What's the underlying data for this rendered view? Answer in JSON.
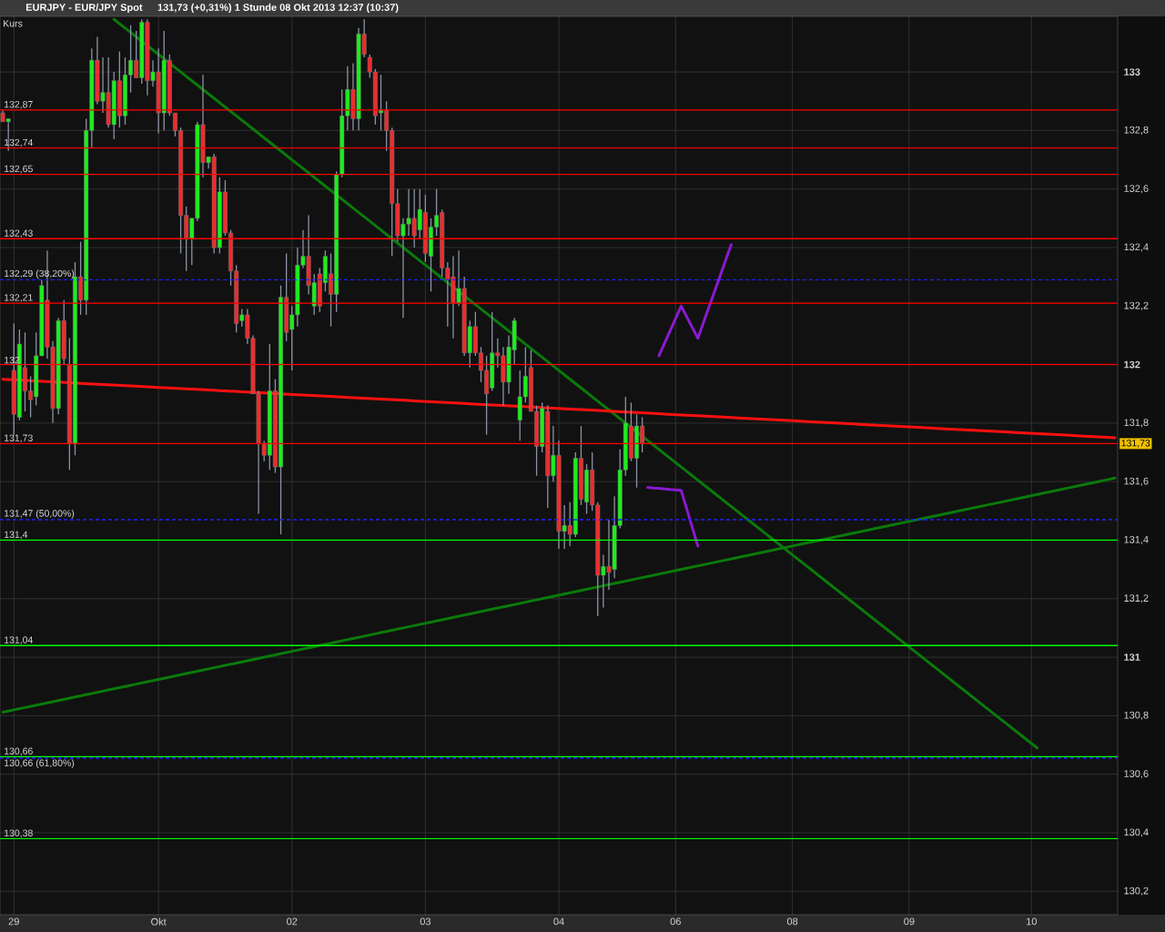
{
  "chart_data": {
    "type": "candlestick",
    "title": "EURJPY - EUR/JPY Spot",
    "subtitle": "131,73 (+0,31%)   1 Stunde  08 Okt 2013 12:37 (10:37)",
    "categories": [
      null,
      null,
      "29",
      null,
      null,
      null,
      null,
      null,
      null,
      null,
      null,
      null,
      null,
      null,
      null,
      null,
      null,
      null,
      null,
      null,
      null,
      null,
      null,
      null,
      null,
      null,
      null,
      null,
      "Okt",
      null,
      null,
      null,
      null,
      null,
      null,
      null,
      null,
      null,
      null,
      null,
      null,
      null,
      null,
      null,
      null,
      null,
      null,
      null,
      null,
      null,
      null,
      null,
      "02",
      null,
      null,
      null,
      null,
      null,
      null,
      null,
      null,
      null,
      null,
      null,
      null,
      null,
      null,
      null,
      null,
      null,
      null,
      null,
      null,
      null,
      null,
      null,
      "03",
      null,
      null,
      null,
      null,
      null,
      null,
      null,
      null,
      null,
      null,
      null,
      null,
      null,
      null,
      null,
      null,
      null,
      null,
      null,
      null,
      null,
      null,
      null,
      "04",
      null,
      null,
      null,
      null,
      null,
      null,
      null,
      null,
      null,
      null,
      null,
      null,
      null,
      null,
      null,
      null,
      null,
      null,
      null,
      null,
      "06",
      null,
      null,
      null,
      null,
      null,
      null,
      null,
      null,
      null,
      null,
      null,
      null,
      null,
      null,
      null,
      null,
      null,
      null,
      null,
      null,
      "08",
      null,
      null,
      null,
      null,
      null,
      null,
      null,
      null,
      null,
      null,
      null,
      null,
      null,
      null,
      null,
      null,
      null,
      null,
      null,
      null,
      "09",
      null,
      null,
      null,
      null,
      null,
      null,
      null,
      null,
      null,
      null,
      null,
      null,
      null,
      null,
      null,
      null,
      null,
      null,
      null,
      null,
      null,
      "10",
      null,
      null,
      null,
      null,
      null,
      null,
      null,
      null,
      null,
      null,
      null,
      null,
      null,
      null,
      null
    ],
    "ohlc": [
      [
        132.86,
        132.87,
        132.83,
        132.83
      ],
      [
        132.83,
        132.84,
        132.73,
        132.84
      ],
      [
        131.98,
        132.14,
        131.76,
        131.83
      ],
      [
        131.82,
        132.12,
        131.81,
        132.07
      ],
      [
        131.99,
        132.11,
        131.84,
        131.91
      ],
      [
        131.91,
        131.96,
        131.82,
        131.88
      ],
      [
        131.89,
        132.11,
        131.86,
        132.03
      ],
      [
        132.03,
        132.29,
        132.03,
        132.27
      ],
      [
        132.22,
        132.39,
        132.02,
        132.06
      ],
      [
        132.06,
        132.08,
        131.8,
        131.85
      ],
      [
        131.85,
        132.16,
        131.83,
        132.15
      ],
      [
        132.15,
        132.22,
        132.0,
        132.02
      ],
      [
        132.0,
        132.09,
        131.64,
        131.73
      ],
      [
        131.73,
        132.35,
        131.69,
        132.3
      ],
      [
        132.3,
        132.42,
        132.17,
        132.22
      ],
      [
        132.22,
        132.84,
        132.17,
        132.8
      ],
      [
        132.8,
        133.08,
        132.74,
        133.04
      ],
      [
        133.04,
        133.12,
        132.89,
        132.9
      ],
      [
        132.9,
        133.05,
        132.86,
        132.93
      ],
      [
        132.93,
        133.05,
        132.81,
        132.82
      ],
      [
        132.82,
        133.0,
        132.77,
        132.97
      ],
      [
        132.97,
        133.07,
        132.81,
        132.85
      ],
      [
        132.85,
        133.05,
        132.82,
        132.99
      ],
      [
        132.99,
        133.16,
        132.93,
        133.04
      ],
      [
        133.04,
        133.14,
        132.98,
        132.98
      ],
      [
        132.98,
        133.18,
        132.96,
        133.17
      ],
      [
        133.17,
        133.18,
        132.92,
        132.97
      ],
      [
        132.97,
        133.04,
        132.95,
        133.0
      ],
      [
        133.0,
        133.08,
        132.79,
        132.86
      ],
      [
        132.86,
        133.14,
        132.8,
        133.04
      ],
      [
        133.04,
        133.06,
        132.85,
        132.86
      ],
      [
        132.86,
        132.86,
        132.78,
        132.8
      ],
      [
        132.8,
        132.81,
        132.38,
        132.51
      ],
      [
        132.51,
        132.54,
        132.32,
        132.43
      ],
      [
        132.43,
        132.5,
        132.34,
        132.5
      ],
      [
        132.5,
        132.83,
        132.49,
        132.82
      ],
      [
        132.82,
        132.99,
        132.64,
        132.69
      ],
      [
        132.69,
        132.71,
        132.67,
        132.71
      ],
      [
        132.71,
        132.72,
        132.38,
        132.4
      ],
      [
        132.4,
        132.64,
        132.38,
        132.59
      ],
      [
        132.59,
        132.63,
        132.44,
        132.45
      ],
      [
        132.45,
        132.46,
        132.27,
        132.32
      ],
      [
        132.32,
        132.34,
        132.11,
        132.14
      ],
      [
        132.15,
        132.19,
        132.13,
        132.17
      ],
      [
        132.17,
        132.19,
        132.07,
        132.09
      ],
      [
        132.09,
        132.1,
        131.9,
        131.9
      ],
      [
        131.9,
        131.91,
        131.49,
        131.73
      ],
      [
        131.73,
        131.74,
        131.67,
        131.69
      ],
      [
        131.69,
        132.07,
        131.64,
        131.91
      ],
      [
        131.91,
        131.95,
        131.63,
        131.65
      ],
      [
        131.65,
        132.27,
        131.42,
        132.23
      ],
      [
        132.23,
        132.38,
        132.08,
        132.11
      ],
      [
        132.12,
        132.2,
        131.98,
        132.17
      ],
      [
        132.17,
        132.4,
        132.13,
        132.34
      ],
      [
        132.34,
        132.46,
        132.33,
        132.37
      ],
      [
        132.37,
        132.51,
        132.24,
        132.27
      ],
      [
        132.2,
        132.31,
        132.17,
        132.28
      ],
      [
        132.31,
        132.33,
        132.18,
        132.2
      ],
      [
        132.28,
        132.39,
        132.25,
        132.37
      ],
      [
        132.31,
        132.38,
        132.13,
        132.24
      ],
      [
        132.24,
        132.66,
        132.18,
        132.65
      ],
      [
        132.65,
        132.94,
        132.64,
        132.85
      ],
      [
        132.85,
        133.02,
        132.8,
        132.94
      ],
      [
        132.94,
        133.03,
        132.8,
        132.84
      ],
      [
        132.84,
        133.15,
        132.8,
        133.13
      ],
      [
        133.13,
        133.18,
        133.05,
        133.06
      ],
      [
        133.05,
        133.06,
        132.98,
        133.0
      ],
      [
        133.0,
        133.01,
        132.82,
        132.85
      ],
      [
        132.86,
        132.99,
        132.8,
        132.87
      ],
      [
        132.87,
        132.9,
        132.73,
        132.8
      ],
      [
        132.8,
        132.81,
        132.37,
        132.55
      ],
      [
        132.55,
        132.6,
        132.42,
        132.44
      ],
      [
        132.44,
        132.5,
        132.16,
        132.48
      ],
      [
        132.48,
        132.6,
        132.44,
        132.5
      ],
      [
        132.5,
        132.6,
        132.4,
        132.44
      ],
      [
        132.46,
        132.6,
        132.43,
        132.53
      ],
      [
        132.52,
        132.58,
        132.35,
        132.38
      ],
      [
        132.37,
        132.5,
        132.25,
        132.47
      ],
      [
        132.47,
        132.6,
        132.44,
        132.51
      ],
      [
        132.52,
        132.53,
        132.3,
        132.33
      ],
      [
        132.33,
        132.35,
        132.13,
        132.29
      ],
      [
        132.3,
        132.37,
        132.09,
        132.21
      ],
      [
        132.21,
        132.39,
        132.2,
        132.26
      ],
      [
        132.26,
        132.3,
        132.03,
        132.04
      ],
      [
        132.04,
        132.15,
        131.99,
        132.13
      ],
      [
        132.13,
        132.18,
        132.03,
        132.04
      ],
      [
        132.04,
        132.06,
        131.94,
        131.98
      ],
      [
        131.98,
        132.03,
        131.76,
        131.9
      ],
      [
        131.92,
        132.18,
        131.91,
        132.04
      ],
      [
        132.04,
        132.09,
        131.99,
        132.03
      ],
      [
        132.03,
        132.06,
        131.86,
        131.94
      ],
      [
        131.94,
        132.1,
        131.9,
        132.06
      ],
      [
        132.05,
        132.16,
        132.0,
        132.15
      ],
      [
        131.81,
        131.98,
        131.74,
        131.89
      ],
      [
        131.89,
        132.06,
        131.87,
        131.96
      ],
      [
        131.99,
        132.05,
        131.84,
        131.84
      ],
      [
        131.84,
        131.86,
        131.62,
        131.72
      ],
      [
        131.72,
        131.87,
        131.7,
        131.85
      ],
      [
        131.84,
        131.86,
        131.51,
        131.62
      ],
      [
        131.62,
        131.79,
        131.6,
        131.69
      ],
      [
        131.69,
        131.74,
        131.37,
        131.43
      ],
      [
        131.43,
        131.52,
        131.37,
        131.45
      ],
      [
        131.45,
        131.53,
        131.38,
        131.42
      ],
      [
        131.42,
        131.7,
        131.41,
        131.68
      ],
      [
        131.68,
        131.79,
        131.52,
        131.54
      ],
      [
        131.53,
        131.66,
        131.49,
        131.64
      ],
      [
        131.64,
        131.7,
        131.5,
        131.52
      ],
      [
        131.52,
        131.53,
        131.14,
        131.28
      ],
      [
        131.28,
        131.35,
        131.17,
        131.31
      ],
      [
        131.31,
        131.47,
        131.23,
        131.29
      ],
      [
        131.3,
        131.55,
        131.27,
        131.45
      ],
      [
        131.45,
        131.71,
        131.44,
        131.64
      ],
      [
        131.64,
        131.89,
        131.62,
        131.8
      ],
      [
        131.79,
        131.87,
        131.67,
        131.68
      ],
      [
        131.68,
        131.83,
        131.58,
        131.79
      ],
      [
        131.79,
        131.82,
        131.7,
        131.73
      ],
      null,
      null,
      null,
      null,
      null,
      null,
      null,
      null,
      null,
      null,
      null,
      null,
      null,
      null,
      null,
      null,
      null,
      null,
      null,
      null,
      null,
      null,
      null,
      null,
      null,
      null,
      null,
      null,
      null,
      null,
      null,
      null,
      null,
      null,
      null,
      null,
      null,
      null,
      null,
      null,
      null,
      null,
      null,
      null,
      null,
      null,
      null,
      null,
      null,
      null,
      null,
      null,
      null,
      null,
      null,
      null,
      null,
      null,
      null,
      null,
      null,
      null,
      null,
      null,
      null,
      null,
      null,
      null,
      null,
      null,
      null,
      null,
      null,
      null,
      null,
      null,
      null,
      null,
      null,
      null,
      null,
      null,
      null,
      null,
      null
    ],
    "colors": [
      "#ef2b2b",
      "#1aef1a",
      "#ef2b2b",
      "#1aef1a",
      "#ef2b2b",
      "#ef2b2b",
      "#1aef1a",
      "#1aef1a",
      "#ef2b2b",
      "#ef2b2b",
      "#1aef1a",
      "#ef2b2b",
      "#ef2b2b",
      "#1aef1a",
      "#ef2b2b",
      "#1aef1a",
      "#1aef1a",
      "#ef2b2b",
      "#1aef1a",
      "#ef2b2b",
      "#1aef1a",
      "#ef2b2b",
      "#1aef1a",
      "#1aef1a",
      "#ef2b2b",
      "#1aef1a",
      "#ef2b2b",
      "#1aef1a",
      "#ef2b2b",
      "#1aef1a",
      "#ef2b2b",
      "#ef2b2b",
      "#ef2b2b",
      "#ef2b2b",
      "#1aef1a",
      "#1aef1a",
      "#ef2b2b",
      "#1aef1a",
      "#ef2b2b",
      "#1aef1a",
      "#ef2b2b",
      "#ef2b2b",
      "#ef2b2b",
      "#1aef1a",
      "#ef2b2b",
      "#ef2b2b",
      "#ef2b2b",
      "#ef2b2b",
      "#1aef1a",
      "#ef2b2b",
      "#1aef1a",
      "#ef2b2b",
      "#1aef1a",
      "#1aef1a",
      "#1aef1a",
      "#ef2b2b",
      "#1aef1a",
      "#ef2b2b",
      "#1aef1a",
      "#ef2b2b",
      "#1aef1a",
      "#1aef1a",
      "#1aef1a",
      "#ef2b2b",
      "#1aef1a",
      "#ef2b2b",
      "#ef2b2b",
      "#ef2b2b",
      "#1aef1a",
      "#ef2b2b",
      "#ef2b2b",
      "#ef2b2b",
      "#1aef1a",
      "#1aef1a",
      "#ef2b2b",
      "#1aef1a",
      "#ef2b2b",
      "#1aef1a",
      "#1aef1a",
      "#ef2b2b",
      "#ef2b2b",
      "#ef2b2b",
      "#1aef1a",
      "#ef2b2b",
      "#1aef1a",
      "#ef2b2b",
      "#ef2b2b",
      "#ef2b2b",
      "#1aef1a",
      "#ef2b2b",
      "#ef2b2b",
      "#1aef1a",
      "#1aef1a",
      "#1aef1a",
      "#1aef1a",
      "#ef2b2b",
      "#ef2b2b",
      "#1aef1a",
      "#ef2b2b",
      "#1aef1a",
      "#ef2b2b",
      "#1aef1a",
      "#ef2b2b",
      "#1aef1a",
      "#ef2b2b",
      "#1aef1a",
      "#ef2b2b",
      "#ef2b2b",
      "#1aef1a",
      "#ef2b2b",
      "#1aef1a",
      "#1aef1a",
      "#1aef1a",
      "#ef2b2b",
      "#1aef1a",
      "#ef2b2b",
      null,
      null,
      null,
      null,
      null,
      null,
      null,
      null,
      null,
      null,
      null,
      null,
      null,
      null,
      null,
      null,
      null,
      null,
      null,
      null,
      null,
      null,
      null,
      null,
      null,
      null,
      null,
      null,
      null,
      null,
      null,
      null,
      null,
      null,
      null,
      null,
      null,
      null,
      null,
      null,
      null,
      null,
      null,
      null,
      null,
      null,
      null,
      null,
      null,
      null,
      null,
      null,
      null,
      null,
      null,
      null,
      null,
      null,
      null,
      null,
      null,
      null,
      null,
      null,
      null,
      null,
      null,
      null,
      null,
      null,
      null,
      null,
      null,
      null,
      null,
      null,
      null,
      null,
      null,
      null,
      null,
      null,
      null,
      null,
      null
    ],
    "series": [
      {
        "type": "line",
        "color": "#0a7a0a",
        "values": [
          null,
          null,
          null,
          null,
          null,
          null,
          null,
          null,
          null,
          null,
          null,
          null,
          null,
          null,
          null,
          null,
          null,
          null,
          null,
          null,
          133.18,
          133.165,
          133.15,
          133.135,
          133.12,
          133.105,
          133.09,
          133.075,
          133.06,
          133.045,
          133.03,
          133.015,
          133.0,
          132.985,
          132.97,
          132.955,
          132.94,
          132.925,
          132.91,
          132.895,
          132.88,
          132.865,
          132.85,
          132.835,
          132.82,
          132.805,
          132.79,
          132.775,
          132.76,
          132.745,
          132.73,
          132.715,
          132.7,
          132.685,
          132.67,
          132.655,
          132.64,
          132.625,
          132.61,
          132.595,
          132.58,
          132.565,
          132.55,
          132.535,
          132.52,
          132.505,
          132.49,
          132.475,
          132.46,
          132.445,
          132.43,
          132.415,
          132.4,
          132.385,
          132.37,
          132.355,
          132.34,
          132.325,
          132.31,
          132.295,
          132.28,
          132.265,
          132.25,
          132.235,
          132.22,
          132.205,
          132.19,
          132.175,
          132.16,
          132.145,
          132.13,
          132.115,
          132.1,
          132.085,
          132.07,
          132.055,
          132.04,
          132.025,
          132.01,
          131.995,
          131.98,
          131.965,
          131.95,
          131.935,
          131.92,
          131.905,
          131.89,
          131.875,
          131.86,
          131.845,
          131.83,
          131.815,
          131.8,
          131.785,
          131.77,
          131.755,
          131.74,
          131.725,
          131.71,
          131.695,
          131.68,
          131.665,
          131.65,
          131.635,
          131.62,
          131.605,
          131.59,
          131.575,
          131.56,
          131.545,
          131.53,
          131.515,
          131.5,
          131.485,
          131.47,
          131.455,
          131.44,
          131.425,
          131.41,
          131.395,
          131.38,
          131.365,
          131.35,
          131.335,
          131.32,
          131.305,
          131.29,
          131.275,
          131.26,
          131.245,
          131.23,
          131.215,
          131.2,
          131.185,
          131.17,
          131.155,
          131.14,
          131.125,
          131.11,
          131.095,
          131.08,
          131.065,
          131.05,
          131.035,
          131.02,
          131.005,
          130.99,
          130.975,
          130.96,
          130.945,
          130.93,
          130.915,
          130.9,
          130.885,
          130.87,
          130.855,
          130.84,
          130.825,
          130.81,
          130.795,
          130.78,
          130.765,
          130.75,
          130.735,
          130.72,
          130.705,
          130.69,
          null,
          null,
          null,
          null,
          null,
          null,
          null,
          null,
          null,
          null,
          null,
          null,
          null,
          null
        ]
      },
      {
        "type": "line",
        "color": "#0a7a0a",
        "values": [
          130.812,
          130.816,
          130.82,
          130.824,
          130.828,
          130.832,
          130.836,
          130.84,
          130.844,
          130.848,
          130.852,
          130.856,
          130.86,
          130.864,
          130.868,
          130.872,
          130.876,
          130.88,
          130.884,
          130.888,
          130.892,
          130.896,
          130.9,
          130.904,
          130.908,
          130.912,
          130.916,
          130.92,
          130.924,
          130.928,
          130.932,
          130.936,
          130.94,
          130.944,
          130.948,
          130.952,
          130.956,
          130.96,
          130.964,
          130.968,
          130.972,
          130.976,
          130.98,
          130.984,
          130.988,
          130.992,
          130.996,
          131.0,
          131.004,
          131.008,
          131.012,
          131.016,
          131.02,
          131.024,
          131.028,
          131.032,
          131.036,
          131.04,
          131.044,
          131.048,
          131.052,
          131.056,
          131.06,
          131.064,
          131.068,
          131.072,
          131.076,
          131.08,
          131.084,
          131.088,
          131.092,
          131.096,
          131.1,
          131.104,
          131.108,
          131.112,
          131.116,
          131.12,
          131.124,
          131.128,
          131.132,
          131.136,
          131.14,
          131.144,
          131.148,
          131.152,
          131.156,
          131.16,
          131.164,
          131.168,
          131.172,
          131.176,
          131.18,
          131.184,
          131.188,
          131.192,
          131.196,
          131.2,
          131.204,
          131.208,
          131.212,
          131.216,
          131.22,
          131.224,
          131.228,
          131.232,
          131.236,
          131.24,
          131.244,
          131.248,
          131.252,
          131.256,
          131.26,
          131.264,
          131.268,
          131.272,
          131.276,
          131.28,
          131.284,
          131.288,
          131.292,
          131.296,
          131.3,
          131.304,
          131.308,
          131.312,
          131.316,
          131.32,
          131.324,
          131.328,
          131.332,
          131.336,
          131.34,
          131.344,
          131.348,
          131.352,
          131.356,
          131.36,
          131.364,
          131.368,
          131.372,
          131.376,
          131.38,
          131.384,
          131.388,
          131.392,
          131.396,
          131.4,
          131.404,
          131.408,
          131.412,
          131.416,
          131.42,
          131.424,
          131.428,
          131.432,
          131.436,
          131.44,
          131.444,
          131.448,
          131.452,
          131.456,
          131.46,
          131.464,
          131.468,
          131.472,
          131.476,
          131.48,
          131.484,
          131.488,
          131.492,
          131.496,
          131.5,
          131.504,
          131.508,
          131.512,
          131.516,
          131.52,
          131.524,
          131.528,
          131.532,
          131.536,
          131.54,
          131.544,
          131.548,
          131.552,
          131.556,
          131.56,
          131.564,
          131.568,
          131.572,
          131.576,
          131.58,
          131.584,
          131.588,
          131.592,
          131.596,
          131.6,
          131.604,
          131.608,
          131.612
        ]
      },
      {
        "type": "line",
        "color": "#ff1010",
        "values": [
          131.95,
          131.949,
          131.948,
          131.947,
          131.946,
          131.945,
          131.944,
          131.943,
          131.942,
          131.941,
          131.94,
          131.939,
          131.938,
          131.937,
          131.936,
          131.935,
          131.934,
          131.933,
          131.932,
          131.931,
          131.93,
          131.929,
          131.928,
          131.927,
          131.926,
          131.925,
          131.924,
          131.923,
          131.922,
          131.921,
          131.92,
          131.919,
          131.918,
          131.917,
          131.916,
          131.915,
          131.914,
          131.913,
          131.912,
          131.911,
          131.91,
          131.909,
          131.908,
          131.907,
          131.906,
          131.905,
          131.904,
          131.903,
          131.902,
          131.901,
          131.9,
          131.899,
          131.898,
          131.897,
          131.896,
          131.895,
          131.894,
          131.893,
          131.892,
          131.891,
          131.89,
          131.889,
          131.888,
          131.887,
          131.886,
          131.885,
          131.884,
          131.883,
          131.882,
          131.881,
          131.88,
          131.879,
          131.878,
          131.877,
          131.876,
          131.875,
          131.874,
          131.873,
          131.872,
          131.871,
          131.87,
          131.869,
          131.868,
          131.867,
          131.866,
          131.865,
          131.864,
          131.863,
          131.862,
          131.861,
          131.86,
          131.859,
          131.858,
          131.857,
          131.856,
          131.855,
          131.854,
          131.853,
          131.852,
          131.851,
          131.85,
          131.849,
          131.848,
          131.847,
          131.846,
          131.845,
          131.844,
          131.843,
          131.842,
          131.841,
          131.84,
          131.839,
          131.838,
          131.837,
          131.836,
          131.835,
          131.834,
          131.833,
          131.832,
          131.831,
          131.83,
          131.829,
          131.828,
          131.827,
          131.826,
          131.825,
          131.824,
          131.823,
          131.822,
          131.821,
          131.82,
          131.819,
          131.818,
          131.817,
          131.816,
          131.815,
          131.814,
          131.813,
          131.812,
          131.811,
          131.81,
          131.809,
          131.808,
          131.807,
          131.806,
          131.805,
          131.804,
          131.803,
          131.802,
          131.801,
          131.8,
          131.799,
          131.798,
          131.797,
          131.796,
          131.795,
          131.794,
          131.793,
          131.792,
          131.791,
          131.79,
          131.789,
          131.788,
          131.787,
          131.786,
          131.785,
          131.784,
          131.783,
          131.782,
          131.781,
          131.78,
          131.779,
          131.778,
          131.777,
          131.776,
          131.775,
          131.774,
          131.773,
          131.772,
          131.771,
          131.77,
          131.769,
          131.768,
          131.767,
          131.766,
          131.765,
          131.764,
          131.763,
          131.762,
          131.761,
          131.76,
          131.759,
          131.758,
          131.757,
          131.756,
          131.755,
          131.754,
          131.753,
          131.752,
          131.751,
          131.75
        ]
      },
      {
        "type": "line",
        "color": "#8a1ad0",
        "values": [
          null,
          null,
          null,
          null,
          null,
          null,
          null,
          null,
          null,
          null,
          null,
          null,
          null,
          null,
          null,
          null,
          null,
          null,
          null,
          null,
          null,
          null,
          null,
          null,
          null,
          null,
          null,
          null,
          null,
          null,
          null,
          null,
          null,
          null,
          null,
          null,
          null,
          null,
          null,
          null,
          null,
          null,
          null,
          null,
          null,
          null,
          null,
          null,
          null,
          null,
          null,
          null,
          null,
          null,
          null,
          null,
          null,
          null,
          null,
          null,
          null,
          null,
          null,
          null,
          null,
          null,
          null,
          null,
          null,
          null,
          null,
          null,
          null,
          null,
          null,
          null,
          null,
          null,
          null,
          null,
          null,
          null,
          null,
          null,
          null,
          null,
          null,
          null,
          null,
          null,
          null,
          null,
          null,
          null,
          null,
          null,
          null,
          null,
          null,
          null,
          null,
          null,
          null,
          null,
          null,
          null,
          null,
          null,
          null,
          null,
          null,
          null,
          null,
          null,
          null,
          null,
          null,
          null,
          132.03,
          132.073,
          132.115,
          132.158,
          132.2,
          132.163,
          132.127,
          132.09,
          132.143,
          132.197,
          132.25,
          132.303,
          132.357,
          132.41,
          null,
          null,
          null,
          null,
          null,
          null,
          null,
          null,
          null,
          null,
          null,
          null,
          null,
          null,
          null,
          null,
          null,
          null,
          null,
          null,
          null,
          null,
          null,
          null,
          null,
          null,
          null,
          null,
          null,
          null,
          null,
          null,
          null,
          null,
          null,
          null,
          null,
          null,
          null,
          null,
          null,
          null,
          null,
          null,
          null,
          null,
          null,
          null,
          null,
          null,
          null,
          null,
          null,
          null,
          null,
          null,
          null,
          null,
          null,
          null,
          null,
          null,
          null,
          null,
          null,
          null,
          null,
          null,
          null
        ]
      },
      {
        "type": "line",
        "color": "#8a1ad0",
        "values": [
          null,
          null,
          null,
          null,
          null,
          null,
          null,
          null,
          null,
          null,
          null,
          null,
          null,
          null,
          null,
          null,
          null,
          null,
          null,
          null,
          null,
          null,
          null,
          null,
          null,
          null,
          null,
          null,
          null,
          null,
          null,
          null,
          null,
          null,
          null,
          null,
          null,
          null,
          null,
          null,
          null,
          null,
          null,
          null,
          null,
          null,
          null,
          null,
          null,
          null,
          null,
          null,
          null,
          null,
          null,
          null,
          null,
          null,
          null,
          null,
          null,
          null,
          null,
          null,
          null,
          null,
          null,
          null,
          null,
          null,
          null,
          null,
          null,
          null,
          null,
          null,
          null,
          null,
          null,
          null,
          null,
          null,
          null,
          null,
          null,
          null,
          null,
          null,
          null,
          null,
          null,
          null,
          null,
          null,
          null,
          null,
          null,
          null,
          null,
          null,
          null,
          null,
          null,
          null,
          null,
          null,
          null,
          null,
          null,
          null,
          null,
          null,
          null,
          null,
          null,
          null,
          131.58,
          131.578,
          131.577,
          131.575,
          131.573,
          131.572,
          131.57,
          131.507,
          131.443,
          131.38,
          null,
          null,
          null,
          null,
          null,
          null,
          null,
          null,
          null,
          null,
          null,
          null,
          null,
          null,
          null,
          null,
          null,
          null,
          null,
          null,
          null,
          null,
          null,
          null,
          null,
          null,
          null,
          null,
          null,
          null,
          null,
          null,
          null,
          null,
          null,
          null,
          null,
          null,
          null,
          null,
          null,
          null,
          null,
          null,
          null,
          null,
          null,
          null,
          null,
          null,
          null,
          null,
          null,
          null,
          null,
          null,
          null,
          null,
          null,
          null,
          null,
          null,
          null,
          null,
          null,
          null,
          null,
          null,
          null,
          null,
          null,
          null,
          null,
          null,
          null
        ]
      }
    ],
    "ref_lines": [
      {
        "axis": "y",
        "value": 132.87,
        "label": "132,87",
        "color": "#ff0000"
      },
      {
        "axis": "y",
        "value": 132.74,
        "label": "132,74",
        "color": "#ff0000"
      },
      {
        "axis": "y",
        "value": 132.65,
        "label": "132,65",
        "color": "#ff0000"
      },
      {
        "axis": "y",
        "value": 132.43,
        "label": "132,43",
        "color": "#ff0000"
      },
      {
        "axis": "y",
        "value": 132.29,
        "label": "132,29 (38,20%)",
        "color": "#2020ff",
        "line_style": "dashed"
      },
      {
        "axis": "y",
        "value": 132.21,
        "label": "132,21",
        "color": "#ff0000"
      },
      {
        "axis": "y",
        "value": 132,
        "label": "132",
        "color": "#ff0000"
      },
      {
        "axis": "y",
        "value": 131.73,
        "label": "131,73",
        "color": "#ff0000"
      },
      {
        "axis": "y",
        "value": 131.47,
        "label": "131,47 (50,00%)",
        "color": "#2020ff",
        "line_style": "dashed"
      },
      {
        "axis": "y",
        "value": 131.4,
        "label": "131,4",
        "color": "#00ff00"
      },
      {
        "axis": "y",
        "value": 131.04,
        "label": "131,04",
        "color": "#00ff00"
      },
      {
        "axis": "y",
        "value": 130.66,
        "label": "130,66",
        "color": "#00ff00"
      },
      {
        "axis": "y",
        "value": 130.655,
        "label": "130,66 (61,80%)",
        "color": "#2020ff",
        "line_style": "dashed"
      },
      {
        "axis": "y",
        "value": 130.38,
        "label": "130,38",
        "color": "#00ff00"
      }
    ],
    "annotations": [
      "Kurs",
      {
        "text": "131,73",
        "y": 131.73
      }
    ],
    "ylim": [
      130.12,
      133.19
    ],
    "yticks": [
      {
        "value": 130.2,
        "label": "130,2"
      },
      {
        "value": 130.4,
        "label": "130,4"
      },
      {
        "value": 130.6,
        "label": "130,6"
      },
      {
        "value": 130.8,
        "label": "130,8"
      },
      131,
      {
        "value": 131.2,
        "label": "131,2"
      },
      {
        "value": 131.4,
        "label": "131,4"
      },
      {
        "value": 131.6,
        "label": "131,6"
      },
      {
        "value": 131.8,
        "label": "131,8"
      },
      132,
      {
        "value": 132.2,
        "label": "132,2"
      },
      {
        "value": 132.4,
        "label": "132,4"
      },
      {
        "value": 132.6,
        "label": "132,6"
      },
      {
        "value": 132.8,
        "label": "132,8"
      },
      133
    ],
    "grid": true
  }
}
